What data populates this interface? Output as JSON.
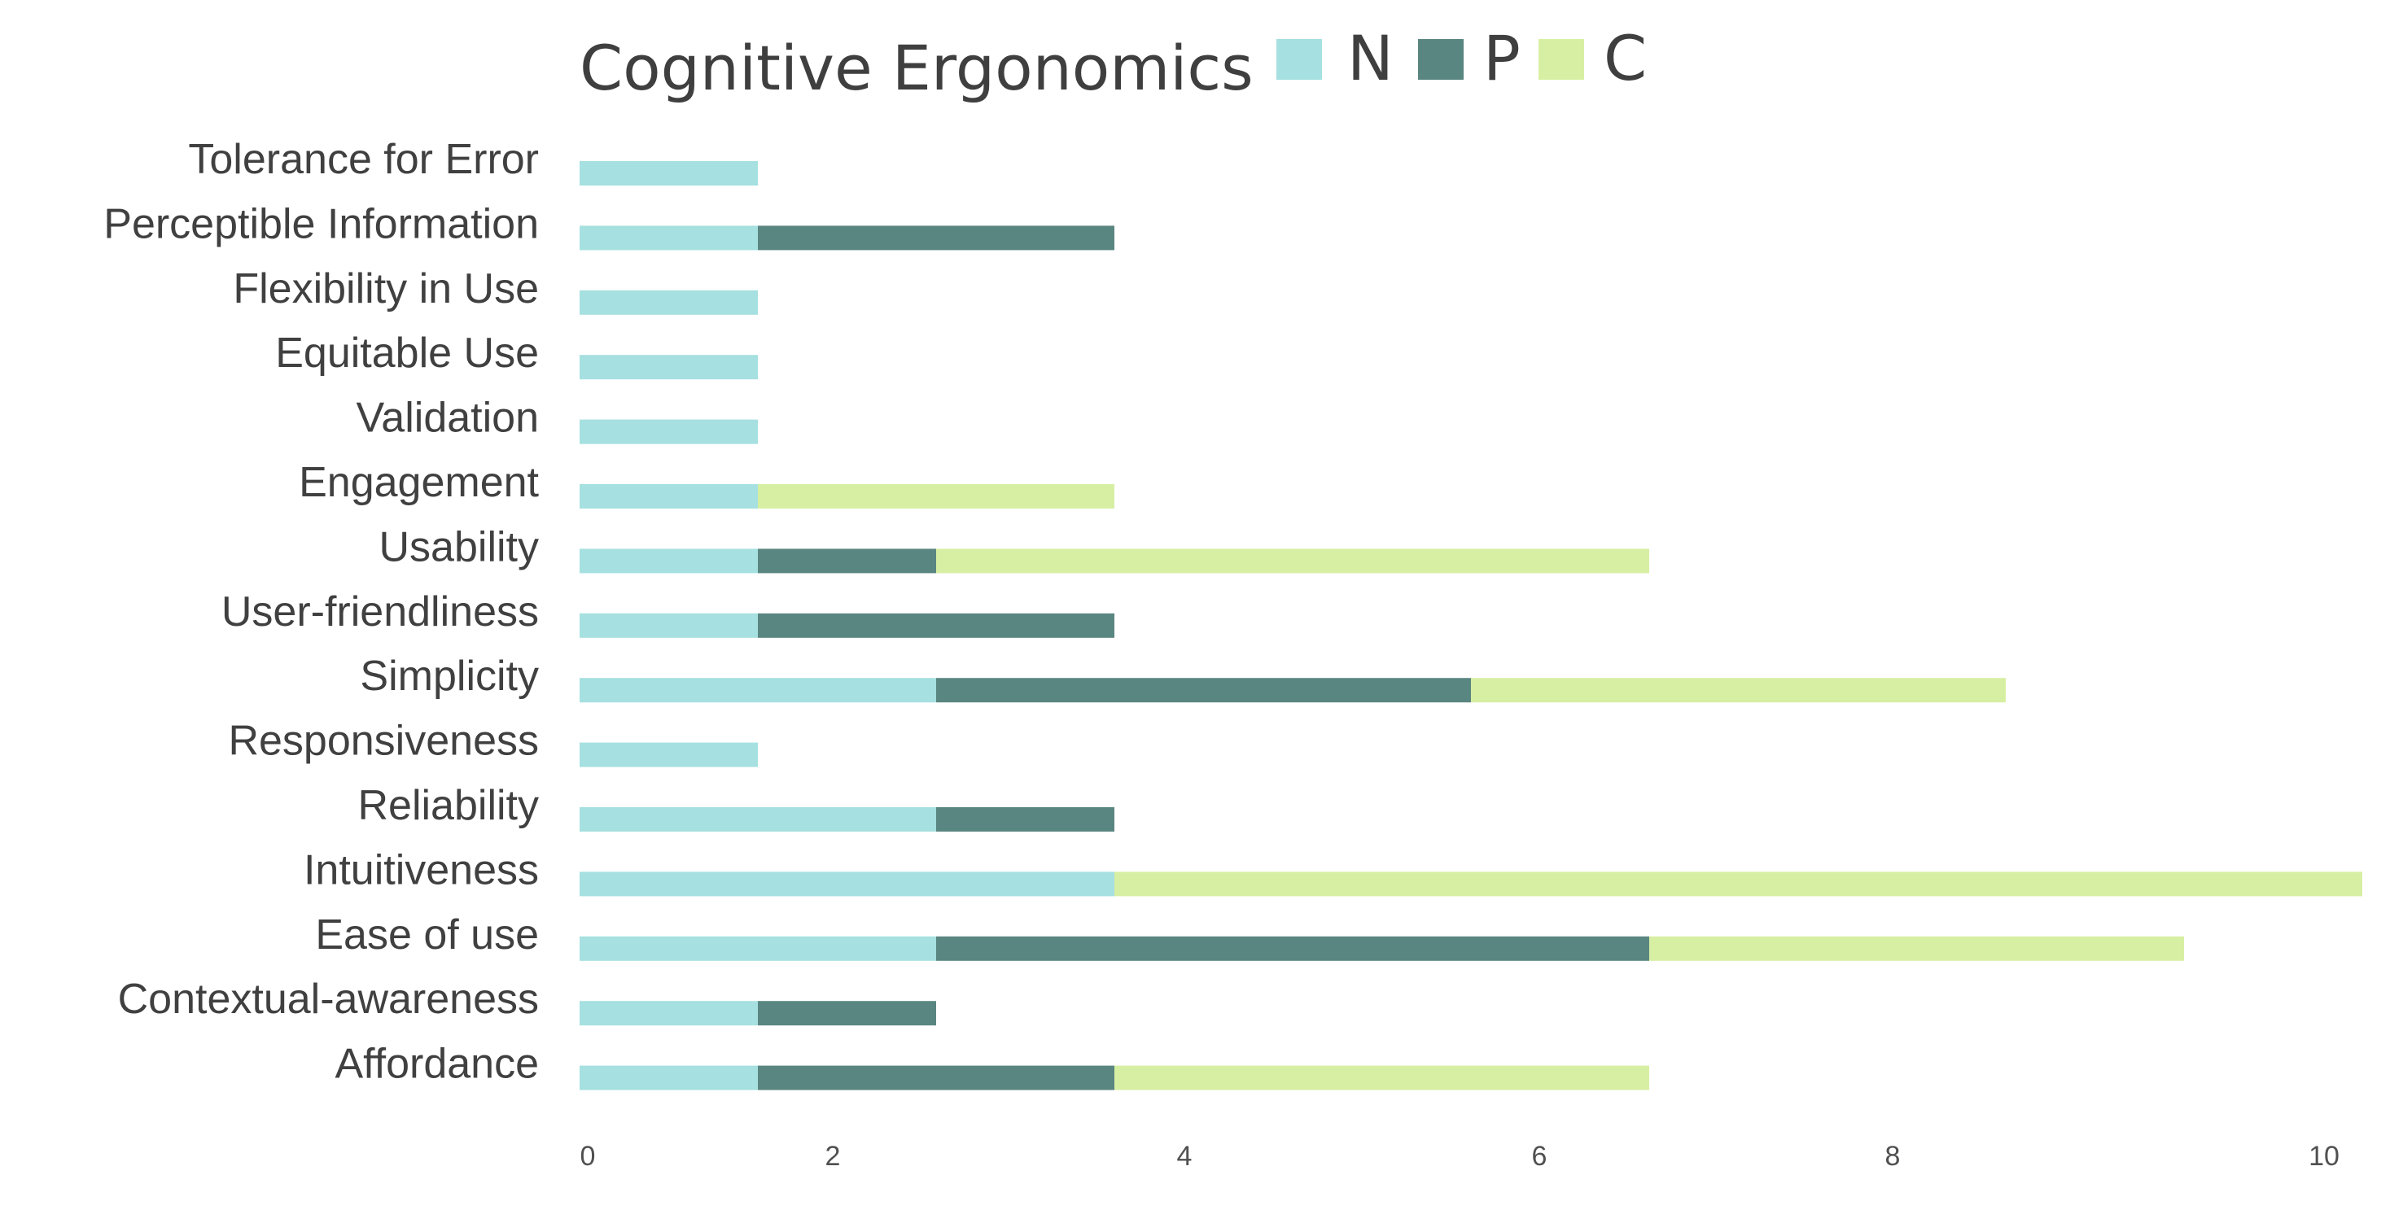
{
  "chart_data": {
    "type": "bar",
    "orientation": "horizontal",
    "stacked": true,
    "title": "Cognitive Ergonomics",
    "legend_position": "top",
    "categories": [
      "Tolerance for Error",
      "Perceptible Information",
      "Flexibility in Use",
      "Equitable Use",
      "Validation",
      "Engagement",
      "Usability",
      "User-friendliness",
      "Simplicity",
      "Responsiveness",
      "Reliability",
      "Intuitiveness",
      "Ease of use",
      "Contextual-awareness",
      "Affordance"
    ],
    "series": [
      {
        "name": "N",
        "color": "#a6e0e0",
        "values": [
          1,
          1,
          1,
          1,
          1,
          1,
          1,
          1,
          2,
          1,
          2,
          3,
          2,
          1,
          1
        ]
      },
      {
        "name": "P",
        "color": "#5a8681",
        "values": [
          0,
          2,
          0,
          0,
          0,
          0,
          1,
          2,
          3,
          0,
          1,
          0,
          4,
          1,
          2
        ]
      },
      {
        "name": "C",
        "color": "#d7efa3",
        "values": [
          0,
          0,
          0,
          0,
          0,
          2,
          4,
          0,
          3,
          0,
          0,
          7,
          3,
          0,
          3
        ]
      }
    ],
    "x_ticks": [
      "0",
      "2",
      "4",
      "6",
      "8",
      "10"
    ],
    "xlim": [
      0,
      10
    ],
    "xlabel": "",
    "ylabel": "",
    "grid": false
  }
}
